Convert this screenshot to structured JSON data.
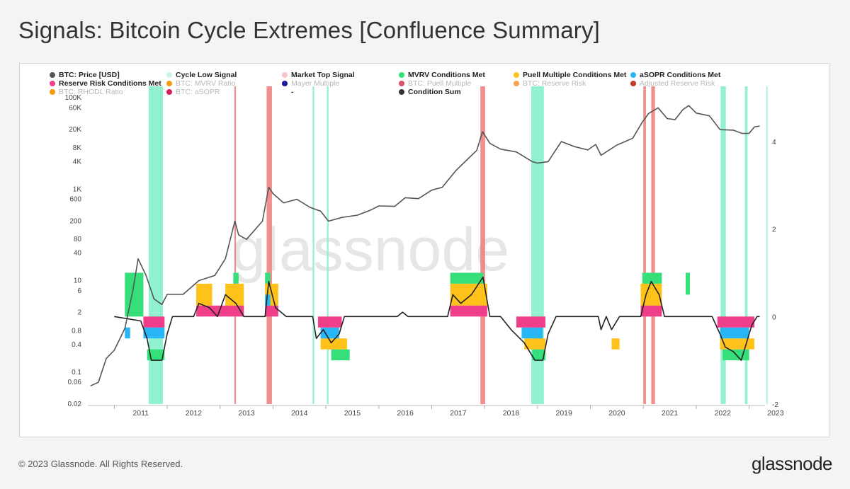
{
  "title": "Signals: Bitcoin Cycle Extremes [Confluence Summary]",
  "footer": "© 2023 Glassnode. All Rights Reserved.",
  "logo": "glassnode",
  "watermark": "glassnode",
  "legend": [
    {
      "label": "BTC: Price [USD]",
      "color": "#555555",
      "active": true
    },
    {
      "label": "Cycle Low Signal",
      "color": "#c8f5e3",
      "active": true
    },
    {
      "label": "Market Top Signal",
      "color": "#f5c6c8",
      "active": true
    },
    {
      "label": "MVRV Conditions Met",
      "color": "#35e07a",
      "active": true
    },
    {
      "label": "Puell Multiple Conditions Met",
      "color": "#ffc21a",
      "active": true
    },
    {
      "label": "aSOPR Conditions Met",
      "color": "#29b6f6",
      "active": true
    },
    {
      "label": "Reserve Risk Conditions Met",
      "color": "#ef3f8a",
      "active": true
    },
    {
      "label": "BTC: MVRV Ratio",
      "color": "#f39c12",
      "active": false
    },
    {
      "label": "Mayer Multiple",
      "color": "#1a1aa0",
      "active": false
    },
    {
      "label": "BTC: Puell Multiple",
      "color": "#d6546a",
      "active": false
    },
    {
      "label": "BTC: Reserve Risk",
      "color": "#f7a24a",
      "active": false
    },
    {
      "label": "Adjusted Reserve Risk",
      "color": "#c0392b",
      "active": false
    },
    {
      "label": "BTC: RHODL Ratio",
      "color": "#f39c12",
      "active": false
    },
    {
      "label": "BTC: aSOPR",
      "color": "#d81b60",
      "active": false
    },
    {
      "label": "-",
      "color": "",
      "active": true
    },
    {
      "label": "Condition Sum",
      "color": "#333333",
      "active": true
    }
  ],
  "chart_data": {
    "type": "line",
    "x_range": [
      2010.5,
      2023.3
    ],
    "x_ticks": [
      2011,
      2012,
      2013,
      2014,
      2015,
      2016,
      2017,
      2018,
      2019,
      2020,
      2021,
      2022,
      2023
    ],
    "y_left_ticks": [
      {
        "v": 100000,
        "label": "100K"
      },
      {
        "v": 60000,
        "label": "60K"
      },
      {
        "v": 20000,
        "label": "20K"
      },
      {
        "v": 8000,
        "label": "8K"
      },
      {
        "v": 4000,
        "label": "4K"
      },
      {
        "v": 1000,
        "label": "1K"
      },
      {
        "v": 600,
        "label": "600"
      },
      {
        "v": 200,
        "label": "200"
      },
      {
        "v": 80,
        "label": "80"
      },
      {
        "v": 40,
        "label": "40"
      },
      {
        "v": 10,
        "label": "10"
      },
      {
        "v": 6,
        "label": "6"
      },
      {
        "v": 2,
        "label": "2"
      },
      {
        "v": 0.8,
        "label": "0.8"
      },
      {
        "v": 0.4,
        "label": "0.4"
      },
      {
        "v": 0.1,
        "label": "0.1"
      },
      {
        "v": 0.06,
        "label": "0.06"
      },
      {
        "v": 0.02,
        "label": "0.02"
      }
    ],
    "y_left_range": [
      0.02,
      100000
    ],
    "y_right_ticks": [
      4,
      2,
      0,
      -2
    ],
    "y_right_range": [
      -2,
      5
    ],
    "price_series": {
      "name": "BTC: Price [USD]",
      "points": [
        [
          2010.55,
          0.05
        ],
        [
          2010.7,
          0.06
        ],
        [
          2010.85,
          0.2
        ],
        [
          2011.0,
          0.3
        ],
        [
          2011.2,
          0.9
        ],
        [
          2011.35,
          6
        ],
        [
          2011.45,
          30
        ],
        [
          2011.6,
          13
        ],
        [
          2011.75,
          4
        ],
        [
          2011.9,
          3
        ],
        [
          2012.0,
          5
        ],
        [
          2012.3,
          5
        ],
        [
          2012.6,
          10
        ],
        [
          2012.9,
          13
        ],
        [
          2013.1,
          30
        ],
        [
          2013.28,
          200
        ],
        [
          2013.35,
          100
        ],
        [
          2013.5,
          80
        ],
        [
          2013.8,
          200
        ],
        [
          2013.92,
          1100
        ],
        [
          2014.0,
          800
        ],
        [
          2014.2,
          500
        ],
        [
          2014.45,
          600
        ],
        [
          2014.7,
          400
        ],
        [
          2014.9,
          330
        ],
        [
          2015.05,
          200
        ],
        [
          2015.3,
          240
        ],
        [
          2015.6,
          270
        ],
        [
          2015.85,
          350
        ],
        [
          2016.0,
          430
        ],
        [
          2016.3,
          420
        ],
        [
          2016.5,
          650
        ],
        [
          2016.75,
          620
        ],
        [
          2017.0,
          950
        ],
        [
          2017.2,
          1100
        ],
        [
          2017.45,
          2500
        ],
        [
          2017.65,
          4200
        ],
        [
          2017.85,
          7000
        ],
        [
          2017.96,
          18000
        ],
        [
          2018.1,
          10000
        ],
        [
          2018.3,
          7500
        ],
        [
          2018.6,
          6500
        ],
        [
          2018.9,
          4000
        ],
        [
          2019.0,
          3700
        ],
        [
          2019.2,
          4000
        ],
        [
          2019.45,
          11000
        ],
        [
          2019.7,
          8500
        ],
        [
          2019.95,
          7200
        ],
        [
          2020.1,
          9500
        ],
        [
          2020.2,
          5500
        ],
        [
          2020.5,
          9200
        ],
        [
          2020.8,
          13000
        ],
        [
          2020.98,
          29000
        ],
        [
          2021.1,
          45000
        ],
        [
          2021.28,
          60000
        ],
        [
          2021.45,
          35000
        ],
        [
          2021.6,
          33000
        ],
        [
          2021.75,
          55000
        ],
        [
          2021.86,
          67000
        ],
        [
          2022.0,
          46000
        ],
        [
          2022.25,
          40000
        ],
        [
          2022.45,
          20000
        ],
        [
          2022.7,
          19500
        ],
        [
          2022.87,
          16500
        ],
        [
          2023.0,
          16600
        ],
        [
          2023.1,
          23000
        ],
        [
          2023.2,
          24000
        ]
      ]
    },
    "condition_sum_series": {
      "name": "Condition Sum",
      "points": [
        [
          2011.0,
          0
        ],
        [
          2011.5,
          -0.1
        ],
        [
          2011.62,
          -0.5
        ],
        [
          2011.7,
          -1.0
        ],
        [
          2011.9,
          -1.0
        ],
        [
          2012.0,
          -0.4
        ],
        [
          2012.1,
          0
        ],
        [
          2012.5,
          0
        ],
        [
          2012.6,
          0.3
        ],
        [
          2012.8,
          0.2
        ],
        [
          2012.95,
          0
        ],
        [
          2013.1,
          0.5
        ],
        [
          2013.3,
          0.3
        ],
        [
          2013.45,
          0
        ],
        [
          2013.85,
          0
        ],
        [
          2013.92,
          0.8
        ],
        [
          2014.05,
          0.2
        ],
        [
          2014.25,
          0
        ],
        [
          2014.75,
          0
        ],
        [
          2014.82,
          -0.5
        ],
        [
          2014.95,
          -0.3
        ],
        [
          2015.1,
          -0.6
        ],
        [
          2015.25,
          -0.4
        ],
        [
          2015.35,
          0
        ],
        [
          2016.35,
          0
        ],
        [
          2016.45,
          0.1
        ],
        [
          2016.55,
          0
        ],
        [
          2017.3,
          0
        ],
        [
          2017.4,
          0.5
        ],
        [
          2017.55,
          0.3
        ],
        [
          2017.75,
          0.5
        ],
        [
          2017.97,
          0.9
        ],
        [
          2018.1,
          0
        ],
        [
          2018.3,
          0
        ],
        [
          2018.5,
          -0.3
        ],
        [
          2018.75,
          -0.6
        ],
        [
          2018.95,
          -1.0
        ],
        [
          2019.1,
          -1.0
        ],
        [
          2019.2,
          -0.4
        ],
        [
          2019.35,
          0
        ],
        [
          2020.15,
          0
        ],
        [
          2020.2,
          -0.3
        ],
        [
          2020.3,
          0
        ],
        [
          2020.4,
          -0.3
        ],
        [
          2020.55,
          0
        ],
        [
          2020.95,
          0
        ],
        [
          2021.05,
          0.5
        ],
        [
          2021.15,
          0.8
        ],
        [
          2021.3,
          0.5
        ],
        [
          2021.4,
          0
        ],
        [
          2022.3,
          0
        ],
        [
          2022.45,
          -0.4
        ],
        [
          2022.55,
          -0.7
        ],
        [
          2022.7,
          -0.8
        ],
        [
          2022.85,
          -1.0
        ],
        [
          2022.95,
          -0.6
        ],
        [
          2023.05,
          -0.2
        ],
        [
          2023.15,
          0
        ],
        [
          2023.2,
          0
        ]
      ]
    },
    "signal_bands": [
      {
        "signal": "Cycle Low Signal",
        "color": "#7ff0c8",
        "from": 2011.65,
        "to": 2011.92
      },
      {
        "signal": "Cycle Low Signal",
        "color": "#7ff0c8",
        "from": 2014.75,
        "to": 2014.78
      },
      {
        "signal": "Cycle Low Signal",
        "color": "#7ff0c8",
        "from": 2015.02,
        "to": 2015.05
      },
      {
        "signal": "Cycle Low Signal",
        "color": "#7ff0c8",
        "from": 2018.88,
        "to": 2019.12
      },
      {
        "signal": "Cycle Low Signal",
        "color": "#7ff0c8",
        "from": 2022.46,
        "to": 2022.56
      },
      {
        "signal": "Cycle Low Signal",
        "color": "#7ff0c8",
        "from": 2022.92,
        "to": 2022.97
      },
      {
        "signal": "Market Top Signal",
        "color": "#f07a7a",
        "from": 2013.27,
        "to": 2013.3
      },
      {
        "signal": "Market Top Signal",
        "color": "#f07a7a",
        "from": 2013.88,
        "to": 2013.98
      },
      {
        "signal": "Market Top Signal",
        "color": "#f07a7a",
        "from": 2017.92,
        "to": 2018.01
      },
      {
        "signal": "Market Top Signal",
        "color": "#f07a7a",
        "from": 2021.0,
        "to": 2021.05
      },
      {
        "signal": "Market Top Signal",
        "color": "#f07a7a",
        "from": 2021.15,
        "to": 2021.22
      }
    ],
    "condition_blocks": [
      {
        "condition": "MVRV Conditions Met",
        "color": "#35e07a",
        "from": 2011.2,
        "to": 2011.55,
        "lo": 0,
        "hi": 1
      },
      {
        "condition": "MVRV Conditions Met",
        "color": "#35e07a",
        "from": 2011.62,
        "to": 2011.95,
        "lo": -1,
        "hi": -0.75
      },
      {
        "condition": "MVRV Conditions Met",
        "color": "#35e07a",
        "from": 2013.25,
        "to": 2013.35,
        "lo": 0.75,
        "hi": 1
      },
      {
        "condition": "MVRV Conditions Met",
        "color": "#35e07a",
        "from": 2013.85,
        "to": 2013.95,
        "lo": 0.75,
        "hi": 1
      },
      {
        "condition": "MVRV Conditions Met",
        "color": "#35e07a",
        "from": 2015.1,
        "to": 2015.45,
        "lo": -1,
        "hi": -0.75
      },
      {
        "condition": "MVRV Conditions Met",
        "color": "#35e07a",
        "from": 2017.35,
        "to": 2017.98,
        "lo": 0.75,
        "hi": 1
      },
      {
        "condition": "MVRV Conditions Met",
        "color": "#35e07a",
        "from": 2018.9,
        "to": 2019.15,
        "lo": -1,
        "hi": -0.75
      },
      {
        "condition": "MVRV Conditions Met",
        "color": "#35e07a",
        "from": 2020.98,
        "to": 2021.35,
        "lo": 0.75,
        "hi": 1
      },
      {
        "condition": "MVRV Conditions Met",
        "color": "#35e07a",
        "from": 2021.8,
        "to": 2021.88,
        "lo": 0.5,
        "hi": 1
      },
      {
        "condition": "MVRV Conditions Met",
        "color": "#35e07a",
        "from": 2022.5,
        "to": 2023.0,
        "lo": -1,
        "hi": -0.75
      },
      {
        "condition": "Puell Multiple Conditions Met",
        "color": "#ffc21a",
        "from": 2012.55,
        "to": 2012.85,
        "lo": 0.25,
        "hi": 0.75
      },
      {
        "condition": "Puell Multiple Conditions Met",
        "color": "#ffc21a",
        "from": 2013.1,
        "to": 2013.45,
        "lo": 0.25,
        "hi": 0.75
      },
      {
        "condition": "Puell Multiple Conditions Met",
        "color": "#ffc21a",
        "from": 2013.85,
        "to": 2014.1,
        "lo": 0.25,
        "hi": 0.75
      },
      {
        "condition": "Puell Multiple Conditions Met",
        "color": "#ffc21a",
        "from": 2014.9,
        "to": 2015.4,
        "lo": -0.75,
        "hi": -0.5
      },
      {
        "condition": "Puell Multiple Conditions Met",
        "color": "#ffc21a",
        "from": 2017.35,
        "to": 2018.05,
        "lo": 0.25,
        "hi": 0.75
      },
      {
        "condition": "Puell Multiple Conditions Met",
        "color": "#ffc21a",
        "from": 2018.75,
        "to": 2019.15,
        "lo": -0.75,
        "hi": -0.5
      },
      {
        "condition": "Puell Multiple Conditions Met",
        "color": "#ffc21a",
        "from": 2020.4,
        "to": 2020.55,
        "lo": -0.75,
        "hi": -0.5
      },
      {
        "condition": "Puell Multiple Conditions Met",
        "color": "#ffc21a",
        "from": 2020.95,
        "to": 2021.35,
        "lo": 0.25,
        "hi": 0.75
      },
      {
        "condition": "Puell Multiple Conditions Met",
        "color": "#ffc21a",
        "from": 2022.45,
        "to": 2023.1,
        "lo": -0.75,
        "hi": -0.5
      },
      {
        "condition": "aSOPR Conditions Met",
        "color": "#29b6f6",
        "from": 2011.55,
        "to": 2011.95,
        "lo": -0.5,
        "hi": -0.25
      },
      {
        "condition": "aSOPR Conditions Met",
        "color": "#29b6f6",
        "from": 2011.2,
        "to": 2011.3,
        "lo": -0.5,
        "hi": -0.25
      },
      {
        "condition": "aSOPR Conditions Met",
        "color": "#29b6f6",
        "from": 2013.85,
        "to": 2013.95,
        "lo": 0.25,
        "hi": 0.5
      },
      {
        "condition": "aSOPR Conditions Met",
        "color": "#29b6f6",
        "from": 2014.9,
        "to": 2015.25,
        "lo": -0.5,
        "hi": -0.25
      },
      {
        "condition": "aSOPR Conditions Met",
        "color": "#29b6f6",
        "from": 2018.7,
        "to": 2019.1,
        "lo": -0.5,
        "hi": -0.25
      },
      {
        "condition": "aSOPR Conditions Met",
        "color": "#29b6f6",
        "from": 2022.45,
        "to": 2023.0,
        "lo": -0.5,
        "hi": -0.25
      },
      {
        "condition": "Reserve Risk Conditions Met",
        "color": "#ef3f8a",
        "from": 2012.55,
        "to": 2013.45,
        "lo": 0,
        "hi": 0.25
      },
      {
        "condition": "Reserve Risk Conditions Met",
        "color": "#ef3f8a",
        "from": 2013.85,
        "to": 2014.1,
        "lo": 0,
        "hi": 0.25
      },
      {
        "condition": "Reserve Risk Conditions Met",
        "color": "#ef3f8a",
        "from": 2011.55,
        "to": 2011.95,
        "lo": -0.25,
        "hi": 0
      },
      {
        "condition": "Reserve Risk Conditions Met",
        "color": "#ef3f8a",
        "from": 2014.85,
        "to": 2015.3,
        "lo": -0.25,
        "hi": 0
      },
      {
        "condition": "Reserve Risk Conditions Met",
        "color": "#ef3f8a",
        "from": 2017.35,
        "to": 2018.05,
        "lo": 0,
        "hi": 0.25
      },
      {
        "condition": "Reserve Risk Conditions Met",
        "color": "#ef3f8a",
        "from": 2018.6,
        "to": 2019.15,
        "lo": -0.25,
        "hi": 0
      },
      {
        "condition": "Reserve Risk Conditions Met",
        "color": "#ef3f8a",
        "from": 2020.95,
        "to": 2021.35,
        "lo": 0,
        "hi": 0.25
      },
      {
        "condition": "Reserve Risk Conditions Met",
        "color": "#ef3f8a",
        "from": 2022.4,
        "to": 2023.1,
        "lo": -0.25,
        "hi": 0
      }
    ]
  }
}
